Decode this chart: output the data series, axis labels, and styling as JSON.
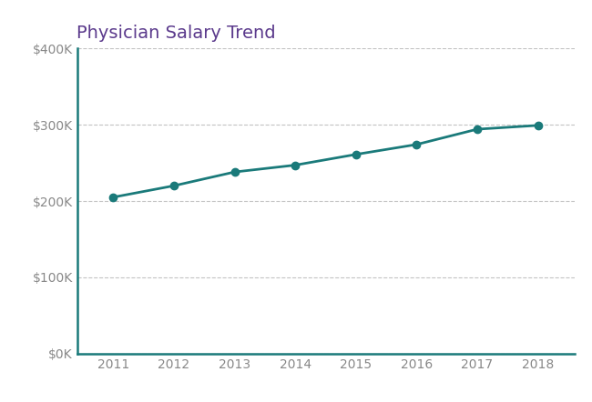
{
  "title": "Physician Salary Trend",
  "title_color": "#5b3a8c",
  "title_fontsize": 14,
  "years": [
    2011,
    2012,
    2013,
    2014,
    2015,
    2016,
    2017,
    2018
  ],
  "salaries": [
    205000,
    220000,
    238000,
    247000,
    261000,
    274000,
    294000,
    299000
  ],
  "line_color": "#1a7a7a",
  "marker": "o",
  "marker_size": 6,
  "line_width": 2.0,
  "ylim": [
    0,
    400000
  ],
  "yticks": [
    0,
    100000,
    200000,
    300000,
    400000
  ],
  "ytick_labels": [
    "$0K",
    "$100K",
    "$200K",
    "$300K",
    "$400K"
  ],
  "background_color": "#ffffff",
  "grid_color": "#aaaaaa",
  "grid_linestyle": "--",
  "grid_alpha": 0.7,
  "spine_color": "#1a7a7a",
  "tick_color": "#888888",
  "tick_fontsize": 10,
  "xlim_left": 2010.4,
  "xlim_right": 2018.6
}
